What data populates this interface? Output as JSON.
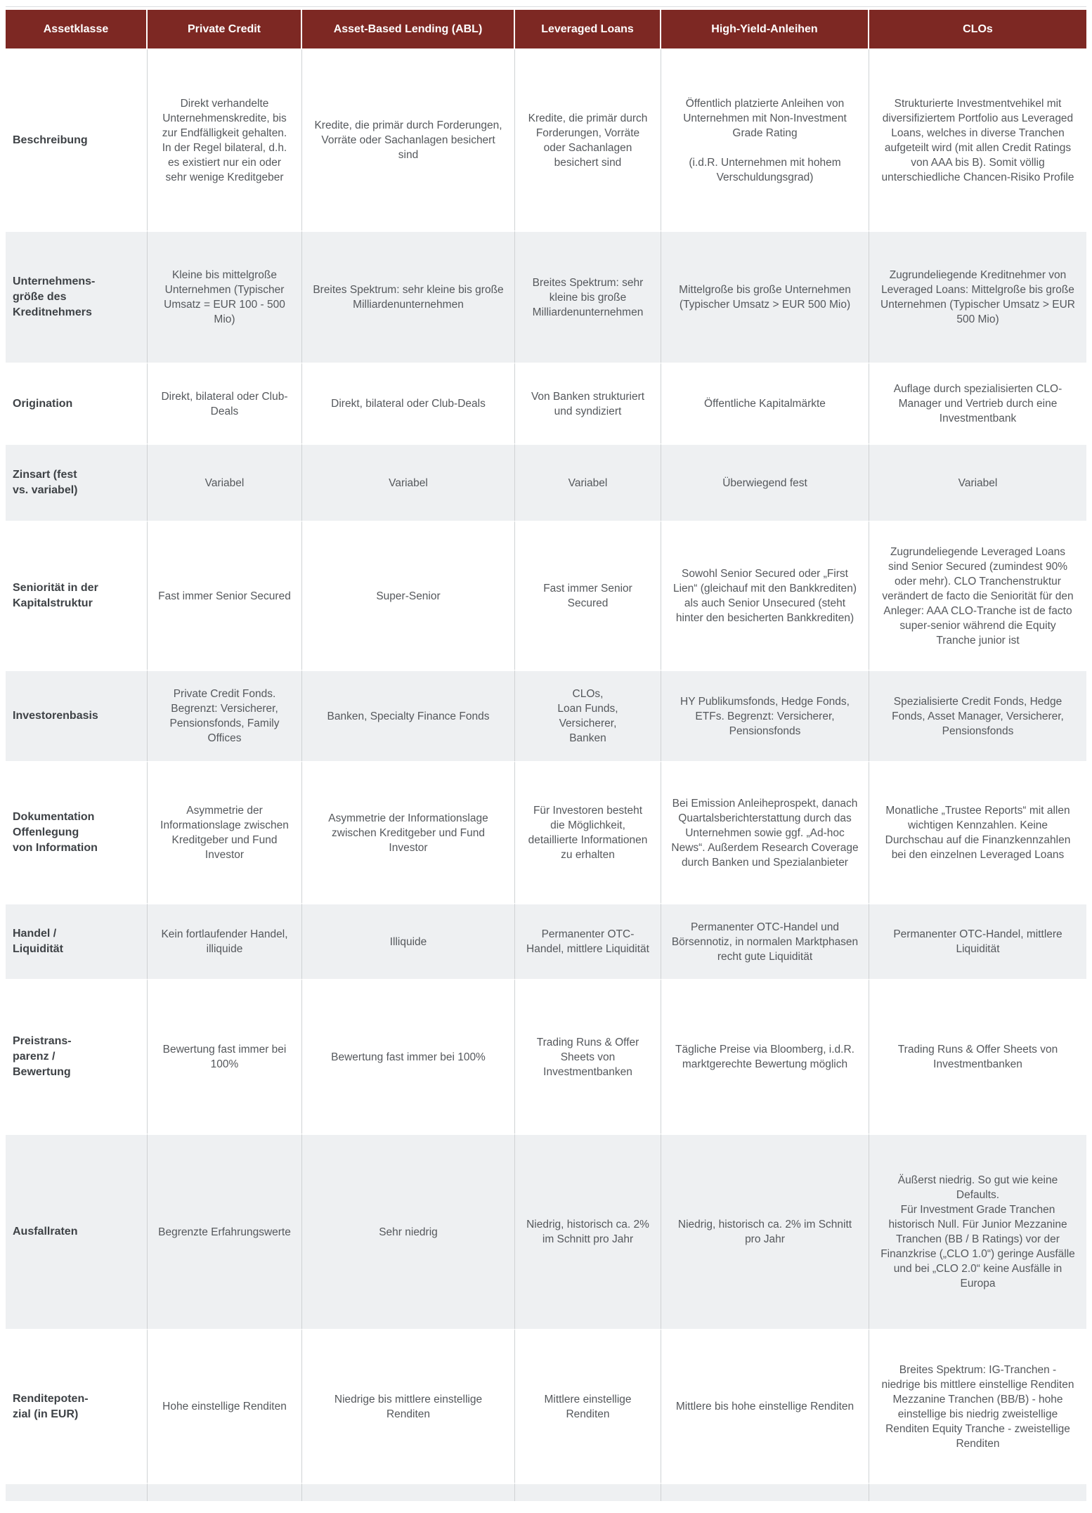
{
  "theme": {
    "header_bg": "#7d2823",
    "header_text": "#ffffff",
    "alt_row_bg": "#eef0f2",
    "body_text": "#55585c",
    "label_text": "#3e4246",
    "grid_line": "#cfd2d4"
  },
  "table": {
    "columns": [
      "Assetklasse",
      "Private Credit",
      "Asset-Based Lending (ABL)",
      "Leveraged Loans",
      "High-Yield-Anleihen",
      "CLOs"
    ],
    "rows": [
      {
        "label": "Beschreibung",
        "cells": [
          "Direkt verhandelte Unternehmenskredite, bis zur Endfälligkeit gehalten. In der Regel bilateral, d.h. es existiert nur ein oder sehr wenige Kreditgeber",
          "Kredite, die primär durch Forderungen, Vorräte oder Sachanlagen besichert sind",
          "Kredite, die primär durch Forderungen, Vorräte oder Sachanlagen besichert sind",
          "Öffentlich platzierte Anleihen von Unternehmen mit Non-Investment Grade Rating\n\n(i.d.R. Unternehmen mit hohem Verschuldungsgrad)",
          "Strukturierte Investmentvehikel mit diversifiziertem Portfolio aus Leveraged Loans, welches in diverse Tranchen aufgeteilt wird (mit allen Credit Ratings von AAA bis B). Somit völlig unterschiedliche Chancen-Risiko Profile"
        ]
      },
      {
        "label": "Unternehmens-\ngröße des\nKreditnehmers",
        "cells": [
          "Kleine bis mittelgroße Unternehmen (Typischer Umsatz = EUR 100 - 500 Mio)",
          "Breites Spektrum: sehr kleine bis große Milliardenunternehmen",
          "Breites Spektrum: sehr kleine bis große Milliardenunternehmen",
          "Mittelgroße bis große Unternehmen (Typischer Umsatz > EUR 500 Mio)",
          "Zugrundeliegende Kreditnehmer von Leveraged Loans: Mittelgroße bis große Unternehmen (Typischer Umsatz > EUR 500 Mio)"
        ]
      },
      {
        "label": "Origination",
        "cells": [
          "Direkt, bilateral oder Club-Deals",
          "Direkt, bilateral oder Club-Deals",
          "Von Banken strukturiert und syndiziert",
          "Öffentliche Kapitalmärkte",
          "Auflage durch spezialisierten CLO-Manager und Vertrieb durch eine Investmentbank"
        ]
      },
      {
        "label": "Zinsart (fest\nvs. variabel)",
        "cells": [
          "Variabel",
          "Variabel",
          "Variabel",
          "Überwiegend fest",
          "Variabel"
        ]
      },
      {
        "label": "Seniorität in der\nKapitalstruktur",
        "cells": [
          "Fast immer Senior Secured",
          "Super-Senior",
          "Fast immer Senior Secured",
          "Sowohl Senior Secured oder „First Lien“ (gleichauf mit den Bankkrediten) als auch Senior Unsecured (steht hinter den besicherten Bankkrediten)",
          "Zugrundeliegende Leveraged Loans sind Senior Secured (zumindest 90% oder mehr). CLO Tranchenstruktur verändert de facto die Seniorität für den Anleger: AAA CLO-Tranche ist de facto super-senior während die Equity Tranche junior ist"
        ]
      },
      {
        "label": "Investorenbasis",
        "cells": [
          "Private Credit Fonds. Begrenzt: Versicherer, Pensionsfonds, Family Offices",
          "Banken, Specialty Finance Fonds",
          "CLOs,\nLoan Funds,\nVersicherer,\nBanken",
          "HY Publikumsfonds, Hedge Fonds, ETFs. Begrenzt: Versicherer, Pensionsfonds",
          "Spezialisierte Credit Fonds, Hedge Fonds, Asset Manager, Versicherer, Pensionsfonds"
        ]
      },
      {
        "label": "Dokumentation\nOffenlegung\nvon Information",
        "cells": [
          "Asymmetrie der Informationslage zwischen Kreditgeber und Fund Investor",
          "Asymmetrie der Informationslage zwischen Kreditgeber und Fund Investor",
          "Für Investoren besteht die Möglichkeit, detaillierte Informationen zu erhalten",
          "Bei Emission Anleiheprospekt, danach Quartalsberichterstattung durch das Unternehmen sowie ggf. „Ad-hoc News“. Außerdem Research Coverage durch Banken und Spezialanbieter",
          "Monatliche „Trustee Reports“ mit allen wichtigen Kennzahlen. Keine Durchschau auf die Finanzkennzahlen bei den einzelnen Leveraged Loans"
        ]
      },
      {
        "label": "Handel /\nLiquidität",
        "cells": [
          "Kein fortlaufender Handel, illiquide",
          "Illiquide",
          "Permanenter OTC-Handel, mittlere Liquidität",
          "Permanenter OTC-Handel und Börsennotiz, in normalen Marktphasen recht gute Liquidität",
          "Permanenter OTC-Handel, mittlere Liquidität"
        ]
      },
      {
        "label": "Preistrans-\nparenz /\nBewertung",
        "cells": [
          "Bewertung fast immer bei 100%",
          "Bewertung fast immer bei 100%",
          "Trading Runs & Offer Sheets von Investmentbanken",
          "Tägliche Preise via Bloomberg, i.d.R. marktgerechte Bewertung möglich",
          "Trading Runs & Offer Sheets von Investmentbanken"
        ]
      },
      {
        "label": "Ausfallraten",
        "cells": [
          "Begrenzte Erfahrungswerte",
          "Sehr niedrig",
          "Niedrig, historisch ca. 2% im Schnitt pro Jahr",
          "Niedrig, historisch ca. 2% im Schnitt pro Jahr",
          "Äußerst niedrig. So gut wie keine Defaults.\nFür Investment Grade Tranchen historisch Null. Für Junior Mezzanine Tranchen (BB / B Ratings) vor der Finanzkrise („CLO 1.0“) geringe Ausfälle und bei „CLO 2.0“ keine Ausfälle in Europa"
        ]
      },
      {
        "label": "Renditepoten-\nzial (in EUR)",
        "cells": [
          "Hohe einstellige Renditen",
          "Niedrige bis mittlere einstellige Renditen",
          "Mittlere einstellige Renditen",
          "Mittlere bis hohe einstellige Renditen",
          "Breites Spektrum: IG-Tranchen - niedrige bis mittlere einstellige Renditen  Mezzanine Tranchen (BB/B) - hohe einstellige bis niedrig zweistellige Renditen Equity Tranche - zweistellige Renditen"
        ]
      },
      {
        "label": "",
        "cells": [
          "",
          "",
          "",
          "",
          ""
        ]
      }
    ]
  }
}
